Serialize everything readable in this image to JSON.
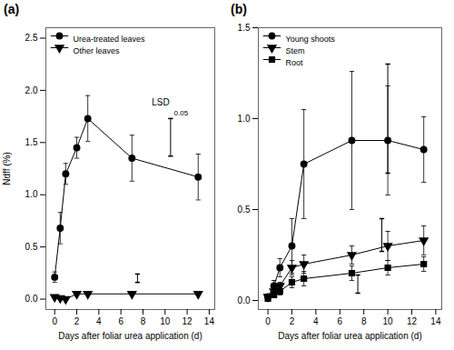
{
  "chart_data": [
    {
      "type": "line",
      "title": "(a)",
      "x": [
        0,
        0.5,
        1,
        2,
        3,
        7,
        13
      ],
      "series": [
        {
          "name": "Urea-treated leaves",
          "color": "#000000",
          "marker": "circle",
          "line_style": "solid",
          "values": [
            0.21,
            0.68,
            1.2,
            1.45,
            1.73,
            1.35,
            1.17
          ],
          "errors": [
            0.05,
            0.15,
            0.1,
            0.1,
            0.22,
            0.22,
            0.22
          ]
        },
        {
          "name": "Other leaves",
          "color": "#000000",
          "marker": "triangle-down",
          "line_style": "solid",
          "values": [
            0.02,
            0.01,
            0.0,
            0.05,
            0.05,
            0.05,
            0.05
          ],
          "errors": [
            0.01,
            0.01,
            0.01,
            0.02,
            0.01,
            0.01,
            0.01
          ]
        }
      ],
      "lsd": [
        {
          "x": 10.5,
          "value": 1.55,
          "error": 0.18
        },
        {
          "x": 7.5,
          "value": 0.2,
          "error": 0.04
        }
      ],
      "annotations": [
        {
          "text": "LSD",
          "x": 8.8,
          "y": 1.88
        },
        {
          "text": "0.05",
          "x": 10.8,
          "y": 1.78
        }
      ],
      "xlabel": "Days after foliar urea application (d)",
      "ylabel": "Ndff (%)",
      "xlim": [
        -0.8,
        14.5
      ],
      "xticks": [
        0,
        2,
        4,
        6,
        8,
        10,
        12,
        14
      ],
      "ylim": [
        -0.1,
        2.6
      ],
      "yticks": [
        {
          "value": 0,
          "label": "0.0"
        },
        0.5,
        {
          "value": 1,
          "label": "1.0"
        },
        1.5,
        {
          "value": 2,
          "label": "2.0"
        },
        2.5
      ],
      "grid": false,
      "legend": "upper left"
    },
    {
      "type": "line",
      "title": "(b)",
      "x": [
        0,
        0.5,
        1,
        2,
        3,
        7,
        10,
        13
      ],
      "series": [
        {
          "name": "Young shoots",
          "color": "#000000",
          "marker": "circle",
          "line_style": "solid",
          "values": [
            0.02,
            0.08,
            0.18,
            0.3,
            0.75,
            0.88,
            0.88,
            0.83
          ],
          "errors": [
            0.01,
            0.03,
            0.05,
            0.15,
            0.3,
            0.38,
            0.3,
            0.18
          ]
        },
        {
          "name": "Stem",
          "color": "#000000",
          "marker": "triangle-down",
          "line_style": "solid",
          "values": [
            0.02,
            0.05,
            0.08,
            0.18,
            0.2,
            0.25,
            0.3,
            0.33
          ],
          "errors": [
            0.01,
            0.02,
            0.02,
            0.04,
            0.05,
            0.05,
            0.08,
            0.08
          ]
        },
        {
          "name": "Root",
          "color": "#000000",
          "marker": "square",
          "line_style": "solid",
          "values": [
            0.01,
            0.03,
            0.05,
            0.1,
            0.12,
            0.15,
            0.18,
            0.2
          ],
          "errors": [
            0.01,
            0.01,
            0.02,
            0.03,
            0.04,
            0.04,
            0.04,
            0.04
          ]
        }
      ],
      "lsd": [
        {
          "x": 10.0,
          "value": 1.0,
          "error": 0.3
        },
        {
          "x": 9.5,
          "value": 0.36,
          "error": 0.09
        },
        {
          "x": 7.5,
          "value": 0.09,
          "error": 0.05
        }
      ],
      "xlabel": "Days after foliar urea application (d)",
      "xlim": [
        -0.8,
        14.5
      ],
      "xticks": [
        0,
        2,
        4,
        6,
        8,
        10,
        12,
        14
      ],
      "ylim": [
        -0.05,
        1.5
      ],
      "yticks": [
        {
          "value": 0,
          "label": "0.0"
        },
        0.5,
        {
          "value": 1,
          "label": "1.0"
        },
        1.5
      ],
      "grid": false,
      "legend": "upper left"
    }
  ]
}
